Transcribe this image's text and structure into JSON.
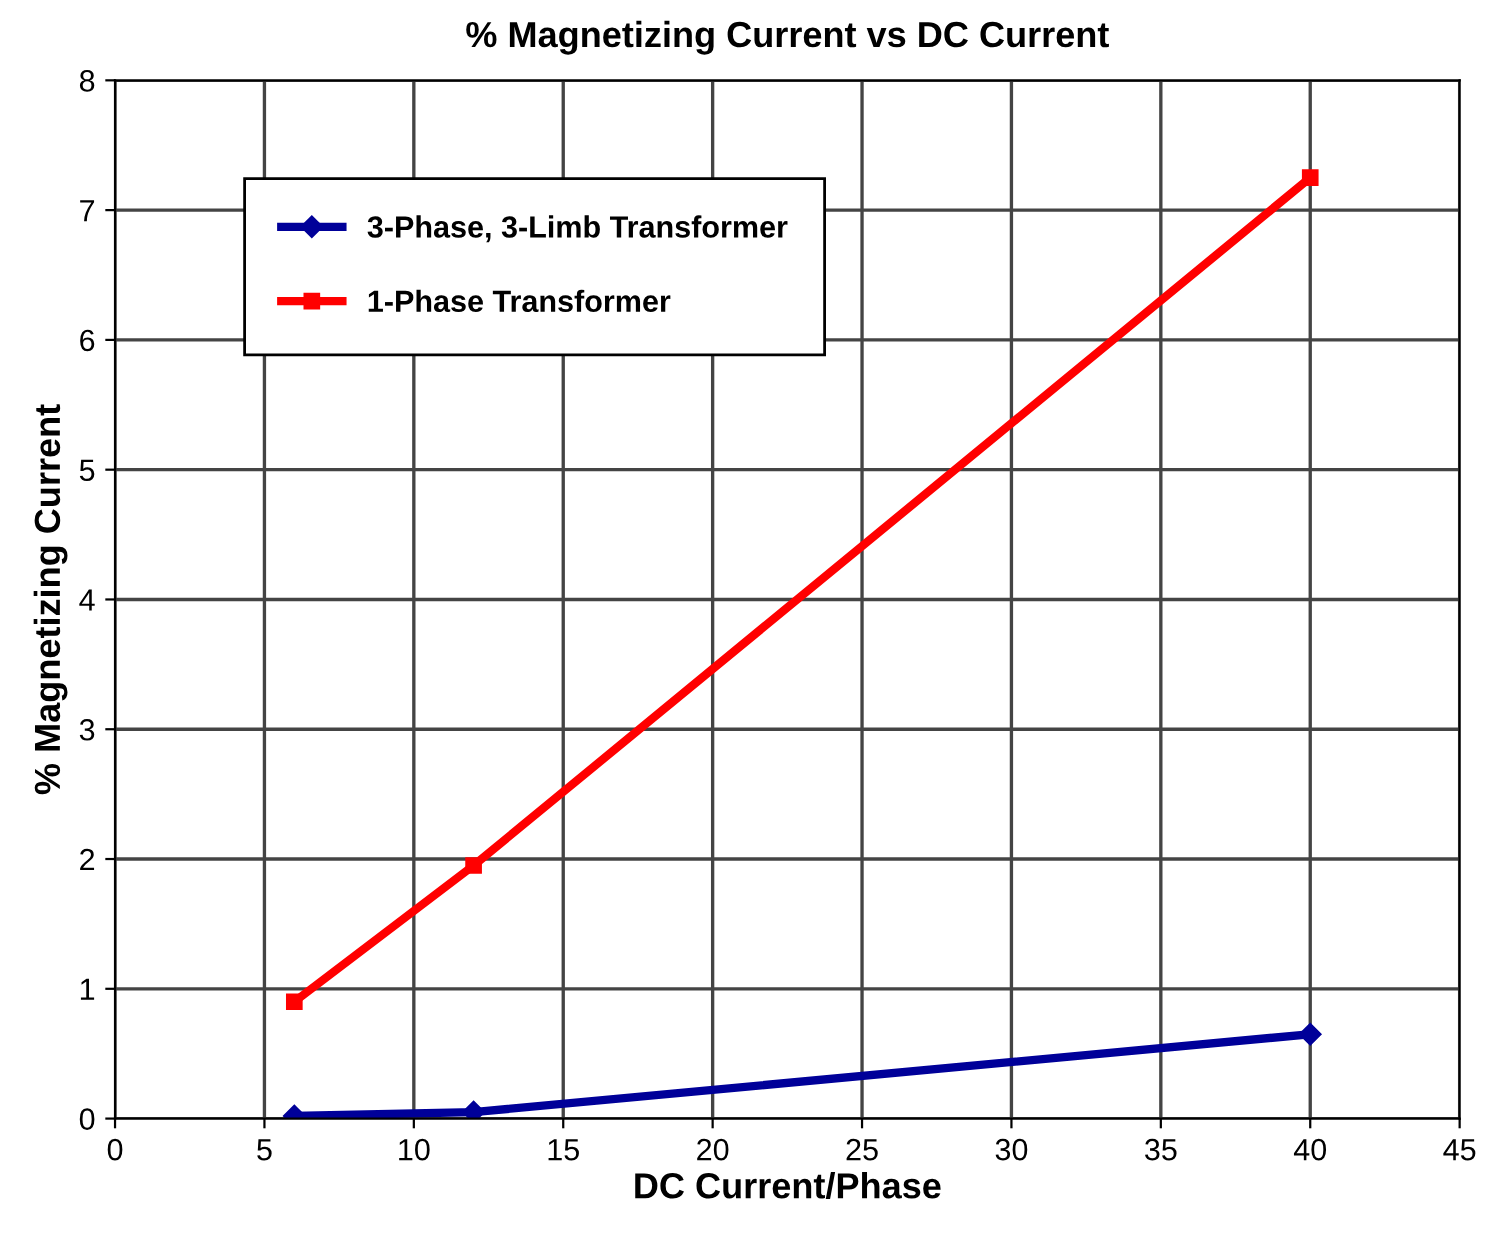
{
  "chart_data": {
    "type": "line",
    "title": "% Magnetizing Current vs DC Current",
    "xlabel": "DC Current/Phase",
    "ylabel": "% Magnetizing Current",
    "xlim": [
      0,
      45
    ],
    "xticks": [
      0,
      5,
      10,
      15,
      20,
      25,
      30,
      35,
      40,
      45
    ],
    "ylim": [
      0,
      8
    ],
    "yticks": [
      0,
      1,
      2,
      3,
      4,
      5,
      6,
      7,
      8
    ],
    "grid": true,
    "legend": "top left",
    "line_style": "solid",
    "series": [
      {
        "name": "3-Phase, 3-Limb Transformer",
        "color": "#000099",
        "marker": "diamond",
        "x": [
          6,
          12,
          40
        ],
        "values": [
          0.02,
          0.05,
          0.65
        ]
      },
      {
        "name": "1-Phase Transformer",
        "color": "#ff0000",
        "marker": "square",
        "x": [
          6,
          12,
          40
        ],
        "values": [
          0.9,
          1.95,
          7.25
        ]
      }
    ]
  }
}
